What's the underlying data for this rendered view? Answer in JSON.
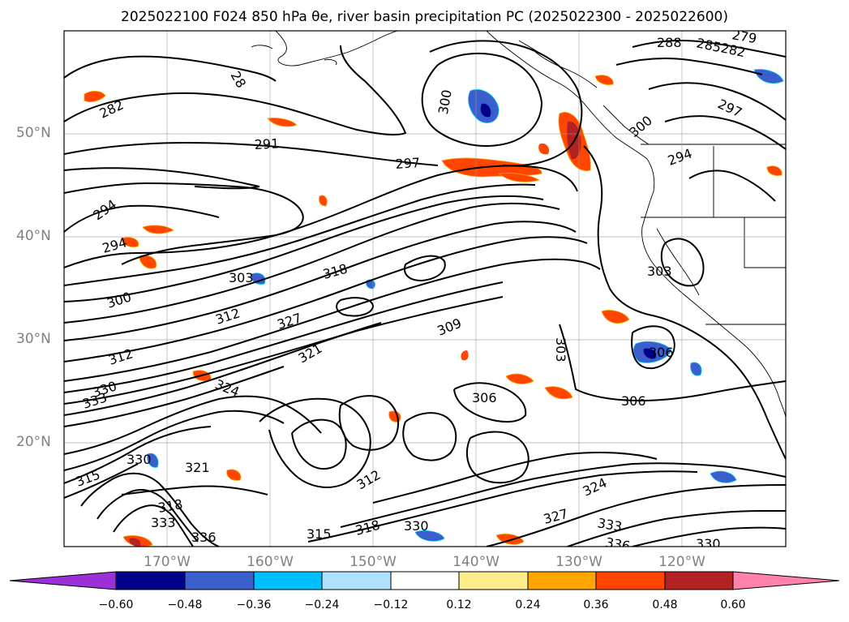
{
  "title": "2025022100 F024 850 hPa θe, river basin precipitation PC (2025022300 - 2025022600)",
  "map": {
    "projection": "lat-lon",
    "lat_labels": [
      "50°N",
      "40°N",
      "30°N",
      "20°N"
    ],
    "lon_labels": [
      "170°W",
      "160°W",
      "150°W",
      "140°W",
      "130°W",
      "120°W"
    ],
    "gridlines": true,
    "contour_labels": [
      "291",
      "297",
      "294",
      "294",
      "300",
      "303",
      "318",
      "312",
      "327",
      "300",
      "312",
      "330",
      "333",
      "324",
      "321",
      "309",
      "303",
      "306",
      "306",
      "306",
      "282",
      "28",
      "288",
      "285",
      "282",
      "279",
      "297",
      "300",
      "294",
      "303",
      "321",
      "330",
      "315",
      "318",
      "312",
      "327",
      "333",
      "336",
      "324",
      "330",
      "336",
      "333",
      "318",
      "330",
      "315"
    ]
  },
  "colorbar": {
    "ticks": [
      "−0.60",
      "−0.48",
      "−0.36",
      "−0.24",
      "−0.12",
      "0.12",
      "0.24",
      "0.36",
      "0.48",
      "0.60"
    ],
    "colors": [
      "#9b30d9",
      "#00008b",
      "#3a5fcd",
      "#00bfff",
      "#b0e2ff",
      "#ffffff",
      "#ffec8b",
      "#ffa500",
      "#ff4500",
      "#b22222",
      "#ff82ab",
      "#ff82ab"
    ],
    "under_color": "#9b30d9",
    "over_color": "#ff82ab"
  }
}
